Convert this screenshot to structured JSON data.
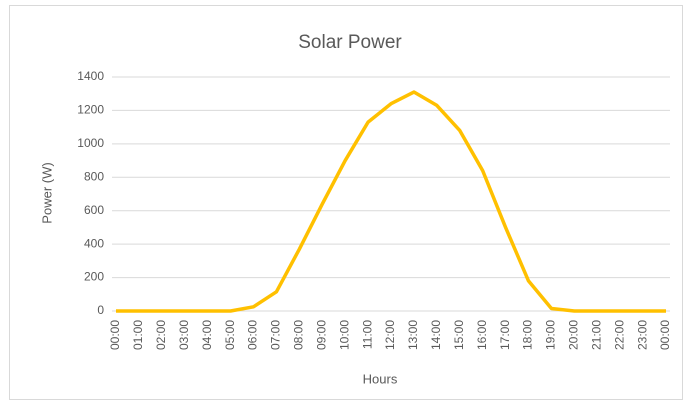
{
  "chart_data": {
    "type": "line",
    "title": "Solar Power",
    "x_label": "Hours",
    "y_label": "Power (W)",
    "categories": [
      "00:00",
      "01:00",
      "02:00",
      "03:00",
      "04:00",
      "05:00",
      "06:00",
      "07:00",
      "08:00",
      "09:00",
      "10:00",
      "11:00",
      "12:00",
      "13:00",
      "14:00",
      "15:00",
      "16:00",
      "17:00",
      "18:00",
      "19:00",
      "20:00",
      "21:00",
      "22:00",
      "23:00",
      "00:00"
    ],
    "series": [
      {
        "name": "Power",
        "color": "#ffc000",
        "values": [
          0,
          0,
          0,
          0,
          0,
          0,
          25,
          115,
          370,
          640,
          900,
          1130,
          1240,
          1310,
          1230,
          1080,
          840,
          500,
          180,
          15,
          0,
          0,
          0,
          0,
          0
        ]
      }
    ],
    "ylim": [
      0,
      1400
    ],
    "yticks": [
      0,
      200,
      400,
      600,
      800,
      1000,
      1200,
      1400
    ],
    "grid": true
  }
}
